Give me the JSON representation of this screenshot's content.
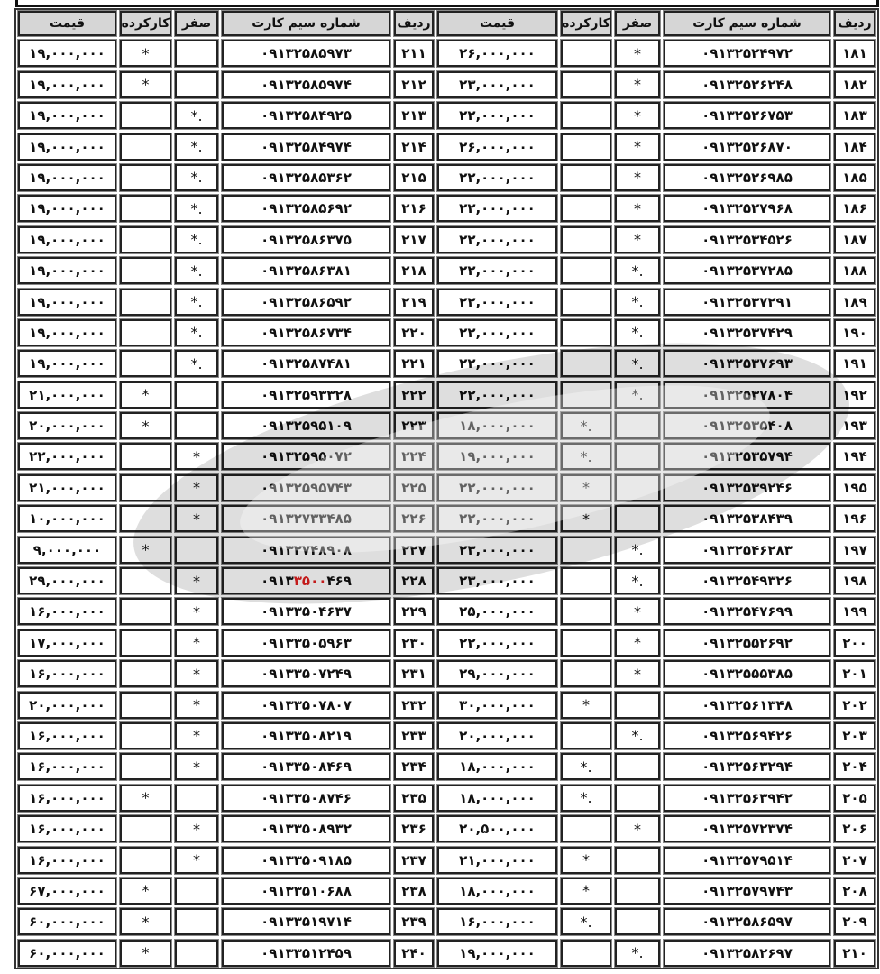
{
  "headers": {
    "radif": "ردیف",
    "phone": "شماره سیم کارت",
    "zero": "صفر",
    "used": "کارکرده",
    "price": "قیمت"
  },
  "colors": {
    "highlight": "#e02020",
    "header_bg": "#d6d6d6"
  },
  "right_rows": [
    {
      "n": "۱۸۱",
      "phone": [
        "۰۹۱۳",
        "۲۵۲",
        "۴۹۷۲"
      ],
      "zero": "*",
      "used": "",
      "price": "۲۶,۰۰۰,۰۰۰"
    },
    {
      "n": "۱۸۲",
      "phone": [
        "۰۹۱۳",
        "۲۵۲",
        "۶۲۴۸"
      ],
      "zero": "*",
      "used": "",
      "price": "۲۳,۰۰۰,۰۰۰"
    },
    {
      "n": "۱۸۳",
      "phone": [
        "۰۹۱۳",
        "۲۵۲",
        "۶۷۵۳"
      ],
      "zero": "*",
      "used": "",
      "price": "۲۲,۰۰۰,۰۰۰"
    },
    {
      "n": "۱۸۴",
      "phone": [
        "۰۹۱۳",
        "۲۵۲",
        "۶۸۷۰"
      ],
      "zero": "*",
      "used": "",
      "price": "۲۶,۰۰۰,۰۰۰"
    },
    {
      "n": "۱۸۵",
      "phone": [
        "۰۹۱۳",
        "۲۵۲",
        "۶۹۸۵"
      ],
      "zero": "*",
      "used": "",
      "price": "۲۲,۰۰۰,۰۰۰"
    },
    {
      "n": "۱۸۶",
      "phone": [
        "۰۹۱۳",
        "۲۵۲",
        "۷۹۶۸"
      ],
      "zero": "*",
      "used": "",
      "price": "۲۲,۰۰۰,۰۰۰"
    },
    {
      "n": "۱۸۷",
      "phone": [
        "۰۹۱۳",
        "۲۵۳",
        "۴۵۲۶"
      ],
      "zero": "*",
      "used": "",
      "price": "۲۲,۰۰۰,۰۰۰"
    },
    {
      "n": "۱۸۸",
      "phone": [
        "۰۹۱۳",
        "۲۵۳",
        "۷۲۸۵"
      ],
      "zero": "*.",
      "used": "",
      "price": "۲۲,۰۰۰,۰۰۰"
    },
    {
      "n": "۱۸۹",
      "phone": [
        "۰۹۱۳",
        "۲۵۳",
        "۷۲۹۱"
      ],
      "zero": "*.",
      "used": "",
      "price": "۲۲,۰۰۰,۰۰۰"
    },
    {
      "n": "۱۹۰",
      "phone": [
        "۰۹۱۳",
        "۲۵۳",
        "۷۴۲۹"
      ],
      "zero": "*.",
      "used": "",
      "price": "۲۲,۰۰۰,۰۰۰"
    },
    {
      "n": "۱۹۱",
      "phone": [
        "۰۹۱۳",
        "۲۵۳",
        "۷۶۹۳"
      ],
      "zero": "*.",
      "used": "",
      "price": "۲۲,۰۰۰,۰۰۰"
    },
    {
      "n": "۱۹۲",
      "phone": [
        "۰۹۱۳",
        "۲۵۳",
        "۷۸۰۴"
      ],
      "zero": "*.",
      "used": "",
      "price": "۲۲,۰۰۰,۰۰۰"
    },
    {
      "n": "۱۹۳",
      "phone": [
        "۰۹۱۳",
        "۲۵۳",
        "۵۴۰۸"
      ],
      "zero": "",
      "used": "*.",
      "price": "۱۸,۰۰۰,۰۰۰"
    },
    {
      "n": "۱۹۴",
      "phone": [
        "۰۹۱۳",
        "۲۵۳",
        "۵۷۹۴"
      ],
      "zero": "",
      "used": "*.",
      "price": "۱۹,۰۰۰,۰۰۰"
    },
    {
      "n": "۱۹۵",
      "phone": [
        "۰۹۱۳",
        "۲۵۳",
        "۹۲۴۶"
      ],
      "zero": "",
      "used": "*",
      "price": "۲۲,۰۰۰,۰۰۰"
    },
    {
      "n": "۱۹۶",
      "phone": [
        "۰۹۱۳",
        "۲۵۳",
        "۸۴۳۹"
      ],
      "zero": "",
      "used": "*",
      "price": "۲۲,۰۰۰,۰۰۰"
    },
    {
      "n": "۱۹۷",
      "phone": [
        "۰۹۱۳",
        "۲۵۴",
        "۶۲۸۳"
      ],
      "zero": "*.",
      "used": "",
      "price": "۲۳,۰۰۰,۰۰۰"
    },
    {
      "n": "۱۹۸",
      "phone": [
        "۰۹۱۳",
        "۲۵۴",
        "۹۳۲۶"
      ],
      "zero": "*.",
      "used": "",
      "price": "۲۳,۰۰۰,۰۰۰"
    },
    {
      "n": "۱۹۹",
      "phone": [
        "۰۹۱۳",
        "۲۵۴",
        "۷۶۹۹"
      ],
      "zero": "*",
      "used": "",
      "price": "۲۵,۰۰۰,۰۰۰"
    },
    {
      "n": "۲۰۰",
      "phone": [
        "۰۹۱۳",
        "۲۵۵",
        "۲۶۹۲"
      ],
      "zero": "*",
      "used": "",
      "price": "۲۲,۰۰۰,۰۰۰"
    },
    {
      "n": "۲۰۱",
      "phone": [
        "۰۹۱۳",
        "۲۵۵",
        "۵۳۸۵"
      ],
      "zero": "*",
      "used": "",
      "price": "۲۹,۰۰۰,۰۰۰"
    },
    {
      "n": "۲۰۲",
      "phone": [
        "۰۹۱۳",
        "۲۵۶",
        "۱۳۴۸"
      ],
      "zero": "",
      "used": "*",
      "price": "۳۰,۰۰۰,۰۰۰"
    },
    {
      "n": "۲۰۳",
      "phone": [
        "۰۹۱۳",
        "۲۵۶",
        "۹۴۲۶"
      ],
      "zero": "*.",
      "used": "",
      "price": "۲۰,۰۰۰,۰۰۰"
    },
    {
      "n": "۲۰۴",
      "phone": [
        "۰۹۱۳",
        "۲۵۶",
        "۳۲۹۴"
      ],
      "zero": "",
      "used": "*.",
      "price": "۱۸,۰۰۰,۰۰۰"
    },
    {
      "n": "۲۰۵",
      "phone": [
        "۰۹۱۳",
        "۲۵۶",
        "۳۹۴۲"
      ],
      "zero": "",
      "used": "*.",
      "price": "۱۸,۰۰۰,۰۰۰"
    },
    {
      "n": "۲۰۶",
      "phone": [
        "۰۹۱۳",
        "۲۵۷",
        "۲۳۷۴"
      ],
      "zero": "*",
      "used": "",
      "price": "۲۰,۵۰۰,۰۰۰"
    },
    {
      "n": "۲۰۷",
      "phone": [
        "۰۹۱۳",
        "۲۵۷",
        "۹۵۱۴"
      ],
      "zero": "",
      "used": "*",
      "price": "۲۱,۰۰۰,۰۰۰"
    },
    {
      "n": "۲۰۸",
      "phone": [
        "۰۹۱۳",
        "۲۵۷",
        "۹۷۴۳"
      ],
      "zero": "",
      "used": "*",
      "price": "۱۸,۰۰۰,۰۰۰"
    },
    {
      "n": "۲۰۹",
      "phone": [
        "۰۹۱۳",
        "۲۵۸",
        "۶۵۹۷"
      ],
      "zero": "",
      "used": "*.",
      "price": "۱۶,۰۰۰,۰۰۰"
    },
    {
      "n": "۲۱۰",
      "phone": [
        "۰۹۱۳",
        "۲۵۸",
        "۲۶۹۷"
      ],
      "zero": "*.",
      "used": "",
      "price": "۱۹,۰۰۰,۰۰۰"
    }
  ],
  "left_rows": [
    {
      "n": "۲۱۱",
      "phone": [
        "۰۹۱۳",
        "۲۵۸",
        "۵۹۷۳"
      ],
      "zero": "",
      "used": "*",
      "price": "۱۹,۰۰۰,۰۰۰"
    },
    {
      "n": "۲۱۲",
      "phone": [
        "۰۹۱۳",
        "۲۵۸",
        "۵۹۷۴"
      ],
      "zero": "",
      "used": "*",
      "price": "۱۹,۰۰۰,۰۰۰"
    },
    {
      "n": "۲۱۳",
      "phone": [
        "۰۹۱۳",
        "۲۵۸",
        "۴۹۲۵"
      ],
      "zero": "*.",
      "used": "",
      "price": "۱۹,۰۰۰,۰۰۰"
    },
    {
      "n": "۲۱۴",
      "phone": [
        "۰۹۱۳",
        "۲۵۸",
        "۴۹۷۴"
      ],
      "zero": "*.",
      "used": "",
      "price": "۱۹,۰۰۰,۰۰۰"
    },
    {
      "n": "۲۱۵",
      "phone": [
        "۰۹۱۳",
        "۲۵۸",
        "۵۳۶۲"
      ],
      "zero": "*.",
      "used": "",
      "price": "۱۹,۰۰۰,۰۰۰"
    },
    {
      "n": "۲۱۶",
      "phone": [
        "۰۹۱۳",
        "۲۵۸",
        "۵۶۹۲"
      ],
      "zero": "*.",
      "used": "",
      "price": "۱۹,۰۰۰,۰۰۰"
    },
    {
      "n": "۲۱۷",
      "phone": [
        "۰۹۱۳",
        "۲۵۸",
        "۶۳۷۵"
      ],
      "zero": "*.",
      "used": "",
      "price": "۱۹,۰۰۰,۰۰۰"
    },
    {
      "n": "۲۱۸",
      "phone": [
        "۰۹۱۳",
        "۲۵۸",
        "۶۳۸۱"
      ],
      "zero": "*.",
      "used": "",
      "price": "۱۹,۰۰۰,۰۰۰"
    },
    {
      "n": "۲۱۹",
      "phone": [
        "۰۹۱۳",
        "۲۵۸",
        "۶۵۹۲"
      ],
      "zero": "*.",
      "used": "",
      "price": "۱۹,۰۰۰,۰۰۰"
    },
    {
      "n": "۲۲۰",
      "phone": [
        "۰۹۱۳",
        "۲۵۸",
        "۶۷۳۴"
      ],
      "zero": "*.",
      "used": "",
      "price": "۱۹,۰۰۰,۰۰۰"
    },
    {
      "n": "۲۲۱",
      "phone": [
        "۰۹۱۳",
        "۲۵۸",
        "۷۴۸۱"
      ],
      "zero": "*.",
      "used": "",
      "price": "۱۹,۰۰۰,۰۰۰"
    },
    {
      "n": "۲۲۲",
      "phone": [
        "۰۹۱۳",
        "۲۵۹",
        "۳۳۲۸"
      ],
      "zero": "",
      "used": "*",
      "price": "۲۱,۰۰۰,۰۰۰"
    },
    {
      "n": "۲۲۳",
      "phone": [
        "۰۹۱۳",
        "۲۵۹",
        "۵۱۰۹"
      ],
      "zero": "",
      "used": "*",
      "price": "۲۰,۰۰۰,۰۰۰"
    },
    {
      "n": "۲۲۴",
      "phone": [
        "۰۹۱۳",
        "۲۵۹",
        "۵۰۷۲"
      ],
      "zero": "*",
      "used": "",
      "price": "۲۲,۰۰۰,۰۰۰"
    },
    {
      "n": "۲۲۵",
      "phone": [
        "۰۹۱۳",
        "۲۵۹",
        "۵۷۴۳"
      ],
      "zero": "*",
      "used": "",
      "price": "۲۱,۰۰۰,۰۰۰"
    },
    {
      "n": "۲۲۶",
      "phone": [
        "۰۹۱۳",
        "۲۷۳",
        "۳۴۸۵"
      ],
      "zero": "*",
      "used": "",
      "price": "۱۰,۰۰۰,۰۰۰"
    },
    {
      "n": "۲۲۷",
      "phone": [
        "۰۹۱۳",
        "۲۷۴",
        "۸۹۰۸"
      ],
      "zero": "",
      "used": "*",
      "price": "۹,۰۰۰,۰۰۰"
    },
    {
      "n": "۲۲۸",
      "phone": [
        "۰۹۱۳",
        "۳۵۰۰",
        "۴۶۹"
      ],
      "highlight": 1,
      "zero": "*",
      "used": "",
      "price": "۲۹,۰۰۰,۰۰۰"
    },
    {
      "n": "۲۲۹",
      "phone": [
        "۰۹۱۳",
        "۳۵۰",
        "۴۶۳۷"
      ],
      "zero": "*",
      "used": "",
      "price": "۱۶,۰۰۰,۰۰۰"
    },
    {
      "n": "۲۳۰",
      "phone": [
        "۰۹۱۳",
        "۳۵۰",
        "۵۹۶۳"
      ],
      "zero": "*",
      "used": "",
      "price": "۱۷,۰۰۰,۰۰۰"
    },
    {
      "n": "۲۳۱",
      "phone": [
        "۰۹۱۳",
        "۳۵۰",
        "۷۲۴۹"
      ],
      "zero": "*",
      "used": "",
      "price": "۱۶,۰۰۰,۰۰۰"
    },
    {
      "n": "۲۳۲",
      "phone": [
        "۰۹۱۳",
        "۳۵۰",
        "۷۸۰۷"
      ],
      "zero": "*",
      "used": "",
      "price": "۲۰,۰۰۰,۰۰۰"
    },
    {
      "n": "۲۳۳",
      "phone": [
        "۰۹۱۳",
        "۳۵۰",
        "۸۲۱۹"
      ],
      "zero": "*",
      "used": "",
      "price": "۱۶,۰۰۰,۰۰۰"
    },
    {
      "n": "۲۳۴",
      "phone": [
        "۰۹۱۳",
        "۳۵۰",
        "۸۴۶۹"
      ],
      "zero": "*",
      "used": "",
      "price": "۱۶,۰۰۰,۰۰۰"
    },
    {
      "n": "۲۳۵",
      "phone": [
        "۰۹۱۳",
        "۳۵۰",
        "۸۷۴۶"
      ],
      "zero": "",
      "used": "*",
      "price": "۱۶,۰۰۰,۰۰۰"
    },
    {
      "n": "۲۳۶",
      "phone": [
        "۰۹۱۳",
        "۳۵۰",
        "۸۹۳۲"
      ],
      "zero": "*",
      "used": "",
      "price": "۱۶,۰۰۰,۰۰۰"
    },
    {
      "n": "۲۳۷",
      "phone": [
        "۰۹۱۳",
        "۳۵۰",
        "۹۱۸۵"
      ],
      "zero": "*",
      "used": "",
      "price": "۱۶,۰۰۰,۰۰۰"
    },
    {
      "n": "۲۳۸",
      "phone": [
        "۰۹۱۳",
        "۳۵۱",
        "۰۶۸۸"
      ],
      "zero": "",
      "used": "*",
      "price": "۶۷,۰۰۰,۰۰۰"
    },
    {
      "n": "۲۳۹",
      "phone": [
        "۰۹۱۳",
        "۳۵۱",
        "۹۷۱۴"
      ],
      "zero": "",
      "used": "*",
      "price": "۶۰,۰۰۰,۰۰۰"
    },
    {
      "n": "۲۴۰",
      "phone": [
        "۰۹۱۳",
        "۳۵۱",
        "۲۴۵۹"
      ],
      "zero": "",
      "used": "*",
      "price": "۶۰,۰۰۰,۰۰۰"
    }
  ]
}
